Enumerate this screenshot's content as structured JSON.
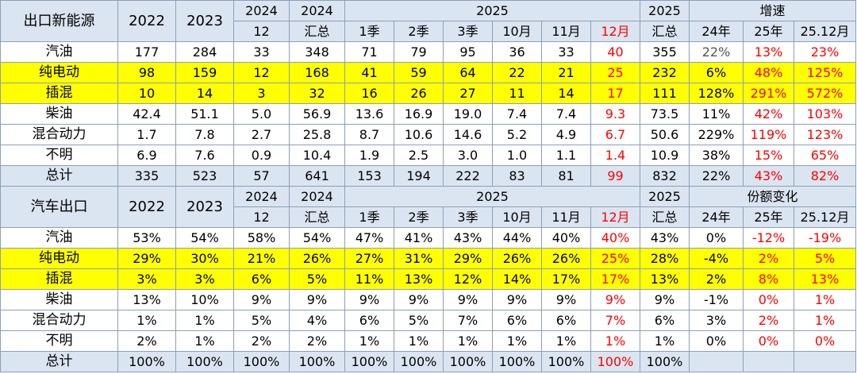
{
  "colors": {
    "header_bg": "#dbe5f1",
    "highlight_bg": "#ffff00",
    "total_bg": "#dbe5f1",
    "red": "#ff0000",
    "border": "#8aa0b8"
  },
  "volume": {
    "corner": "出口新能源",
    "y2022": "2022",
    "y2023": "2023",
    "y2024": "2024",
    "m12": "12",
    "y2024b": "2024",
    "sum": "汇总",
    "y2025": "2025",
    "q1": "1季",
    "q2": "2季",
    "q3": "3季",
    "oct": "10月",
    "nov": "11月",
    "dec": "12月",
    "y2025b": "2025",
    "sum2025": "汇总",
    "growth": "增速",
    "g24": "24年",
    "g25": "25年",
    "g2512": "25.12月",
    "rows": [
      {
        "label": "汽油",
        "c": [
          "177",
          "284",
          "33",
          "348",
          "71",
          "79",
          "95",
          "36",
          "33",
          "40",
          "355",
          "22%",
          "13%",
          "23%"
        ]
      },
      {
        "label": "纯电动",
        "c": [
          "98",
          "159",
          "12",
          "168",
          "41",
          "59",
          "64",
          "22",
          "21",
          "25",
          "232",
          "6%",
          "48%",
          "125%"
        ]
      },
      {
        "label": "插混",
        "c": [
          "10",
          "14",
          "3",
          "32",
          "16",
          "26",
          "27",
          "11",
          "14",
          "17",
          "111",
          "128%",
          "291%",
          "572%"
        ]
      },
      {
        "label": "柴油",
        "c": [
          "42.4",
          "51.1",
          "5.0",
          "56.9",
          "13.6",
          "16.9",
          "19.0",
          "7.4",
          "7.4",
          "9.3",
          "73.5",
          "11%",
          "42%",
          "103%"
        ]
      },
      {
        "label": "混合动力",
        "c": [
          "1.7",
          "7.8",
          "2.7",
          "25.8",
          "8.7",
          "10.6",
          "14.6",
          "5.2",
          "4.9",
          "6.7",
          "50.6",
          "229%",
          "119%",
          "123%"
        ]
      },
      {
        "label": "不明",
        "c": [
          "6.9",
          "7.6",
          "0.9",
          "10.4",
          "1.9",
          "2.5",
          "3.0",
          "1.0",
          "1.1",
          "1.4",
          "10.9",
          "38%",
          "15%",
          "65%"
        ]
      },
      {
        "label": "总计",
        "c": [
          "335",
          "523",
          "57",
          "641",
          "153",
          "194",
          "222",
          "83",
          "81",
          "99",
          "832",
          "22%",
          "43%",
          "82%"
        ]
      }
    ]
  },
  "share": {
    "corner": "汽车出口",
    "y2022": "2022",
    "y2023": "2023",
    "y2024": "2024",
    "m12": "12",
    "y2024b": "2024",
    "sum": "汇总",
    "y2025": "2025",
    "q1": "1季",
    "q2": "2季",
    "q3": "3季",
    "oct": "10月",
    "nov": "11月",
    "dec": "12月",
    "y2025b": "2025",
    "sum2025": "汇总",
    "change": "份额变化",
    "g24": "24年",
    "g25": "25年",
    "g2512": "25.12月",
    "rows": [
      {
        "label": "汽油",
        "c": [
          "53%",
          "54%",
          "58%",
          "54%",
          "47%",
          "41%",
          "43%",
          "44%",
          "40%",
          "40%",
          "43%",
          "0%",
          "-12%",
          "-19%"
        ]
      },
      {
        "label": "纯电动",
        "c": [
          "29%",
          "30%",
          "21%",
          "26%",
          "27%",
          "31%",
          "29%",
          "26%",
          "26%",
          "25%",
          "28%",
          "-4%",
          "2%",
          "5%"
        ]
      },
      {
        "label": "插混",
        "c": [
          "3%",
          "3%",
          "6%",
          "5%",
          "11%",
          "13%",
          "12%",
          "14%",
          "17%",
          "17%",
          "13%",
          "2%",
          "8%",
          "13%"
        ]
      },
      {
        "label": "柴油",
        "c": [
          "13%",
          "10%",
          "9%",
          "9%",
          "9%",
          "9%",
          "9%",
          "9%",
          "9%",
          "9%",
          "9%",
          "-1%",
          "0%",
          "1%"
        ]
      },
      {
        "label": "混合动力",
        "c": [
          "1%",
          "1%",
          "5%",
          "4%",
          "6%",
          "5%",
          "7%",
          "6%",
          "6%",
          "7%",
          "6%",
          "3%",
          "2%",
          "1%"
        ]
      },
      {
        "label": "不明",
        "c": [
          "2%",
          "1%",
          "2%",
          "2%",
          "1%",
          "1%",
          "1%",
          "1%",
          "1%",
          "1%",
          "1%",
          "0%",
          "0%",
          "0%"
        ]
      },
      {
        "label": "总计",
        "c": [
          "100%",
          "100%",
          "100%",
          "100%",
          "100%",
          "100%",
          "100%",
          "100%",
          "100%",
          "100%",
          "100%",
          "",
          "",
          ""
        ]
      }
    ]
  }
}
